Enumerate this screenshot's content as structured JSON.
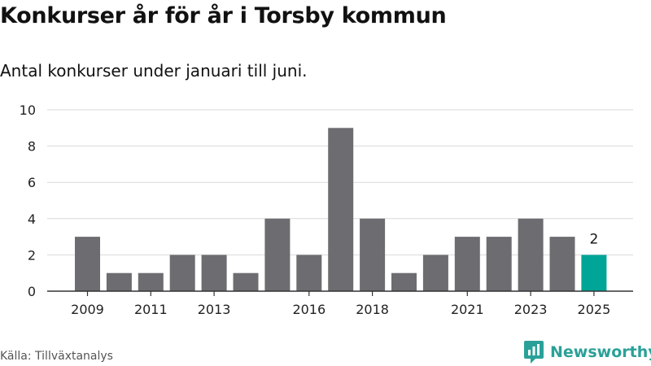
{
  "chart_data": {
    "type": "bar",
    "title": "Konkurser år för år i Torsby kommun",
    "subtitle": "Antal konkurser under januari till juni.",
    "x": [
      2009,
      2010,
      2011,
      2012,
      2013,
      2014,
      2015,
      2016,
      2017,
      2018,
      2019,
      2020,
      2021,
      2022,
      2023,
      2024,
      2025
    ],
    "values": [
      3,
      1,
      1,
      2,
      2,
      1,
      4,
      2,
      9,
      4,
      1,
      2,
      3,
      3,
      4,
      3,
      2
    ],
    "x_tick_labels": [
      "2009",
      "2011",
      "2013",
      "2016",
      "2018",
      "2021",
      "2023",
      "2025"
    ],
    "y_tick_labels": [
      "0",
      "2",
      "4",
      "6",
      "8",
      "10"
    ],
    "ylim": [
      0,
      10
    ],
    "grid": true,
    "highlight_label": "2",
    "colors": {
      "bar": "#6d6c70",
      "highlight": "#00a597",
      "grid": "#d9d9d9",
      "axis": "#333333"
    }
  },
  "source": "Källa: Tillväxtanalys",
  "brand": {
    "name": "Newsworthy",
    "icon": "newsworthy-logo-icon",
    "color": "#2aa198"
  }
}
